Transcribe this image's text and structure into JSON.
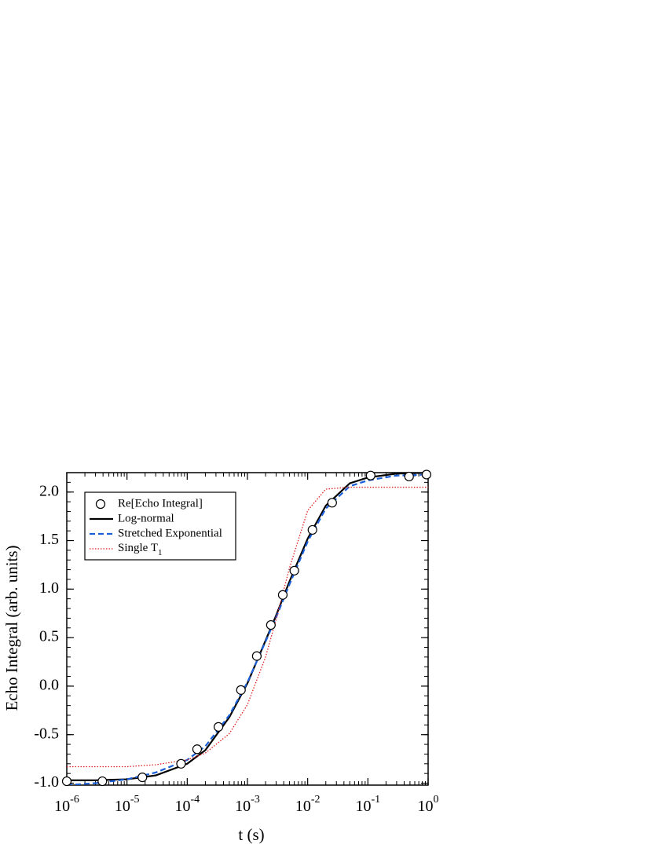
{
  "chart_data": {
    "type": "line",
    "x_label": "t (s)",
    "y_label": "Echo Integral (arb. units)",
    "xscale": "log",
    "xlim": [
      1e-06,
      1
    ],
    "xticks": [
      {
        "value": 1e-06,
        "label": "10-6"
      },
      {
        "value": 1e-05,
        "label": "10-5"
      },
      {
        "value": 0.0001,
        "label": "10-4"
      },
      {
        "value": 0.001,
        "label": "10-3"
      },
      {
        "value": 0.01,
        "label": "10-2"
      },
      {
        "value": 0.1,
        "label": "10-1"
      },
      {
        "value": 1,
        "label": "100"
      }
    ],
    "ylim": [
      -1.02,
      2.2
    ],
    "yticks": [
      {
        "value": -1,
        "label": "-1.0"
      },
      {
        "value": -0.5,
        "label": "-0.5"
      },
      {
        "value": 0,
        "label": "0.0"
      },
      {
        "value": 0.5,
        "label": "0.5"
      },
      {
        "value": 1,
        "label": "1.0"
      },
      {
        "value": 1.5,
        "label": "1.5"
      },
      {
        "value": 2,
        "label": "2.0"
      }
    ],
    "legend": "upper left",
    "series": [
      {
        "name": "Re[Echo Integral]",
        "type": "scatter",
        "color": "#000000",
        "x": [
          1e-06,
          3.9e-06,
          1.8e-05,
          7.9e-05,
          0.000146,
          0.00033,
          0.00078,
          0.00143,
          0.00245,
          0.00386,
          0.006,
          0.012,
          0.0255,
          0.111,
          0.483,
          0.94
        ],
        "values": [
          -0.98,
          -0.98,
          -0.94,
          -0.8,
          -0.65,
          -0.42,
          -0.04,
          0.31,
          0.63,
          0.94,
          1.19,
          1.61,
          1.89,
          2.17,
          2.16,
          2.18
        ]
      },
      {
        "name": "Log-normal",
        "type": "line",
        "color": "#000000",
        "dash": "solid",
        "x": [
          1e-06,
          3e-06,
          1e-05,
          3e-05,
          0.0001,
          0.0002,
          0.0005,
          0.001,
          0.002,
          0.003,
          0.005,
          0.01,
          0.02,
          0.05,
          0.1,
          0.3,
          1
        ],
        "values": [
          -0.97,
          -0.97,
          -0.96,
          -0.92,
          -0.8,
          -0.66,
          -0.32,
          0.03,
          0.47,
          0.73,
          1.08,
          1.52,
          1.86,
          2.09,
          2.15,
          2.19,
          2.2
        ]
      },
      {
        "name": "Stretched Exponential",
        "type": "line",
        "color": "#1a5fd8",
        "dash": "dashed",
        "x": [
          1e-06,
          3e-06,
          1e-05,
          3e-05,
          0.0001,
          0.0002,
          0.0005,
          0.001,
          0.002,
          0.003,
          0.005,
          0.01,
          0.02,
          0.05,
          0.1,
          0.3,
          1
        ],
        "values": [
          -1.02,
          -1,
          -0.96,
          -0.89,
          -0.76,
          -0.62,
          -0.3,
          0.04,
          0.46,
          0.71,
          1.05,
          1.49,
          1.83,
          2.06,
          2.12,
          2.17,
          2.18
        ]
      },
      {
        "name": "Single T1",
        "type": "line",
        "color": "#e02020",
        "dash": "dotted",
        "x": [
          1e-06,
          3e-06,
          1e-05,
          3e-05,
          0.0001,
          0.0002,
          0.0005,
          0.001,
          0.002,
          0.003,
          0.005,
          0.01,
          0.02,
          0.05,
          0.1,
          0.3,
          1
        ],
        "values": [
          -0.83,
          -0.83,
          -0.83,
          -0.81,
          -0.76,
          -0.69,
          -0.49,
          -0.19,
          0.3,
          0.69,
          1.22,
          1.81,
          2.03,
          2.05,
          2.05,
          2.05,
          2.05
        ]
      }
    ]
  }
}
